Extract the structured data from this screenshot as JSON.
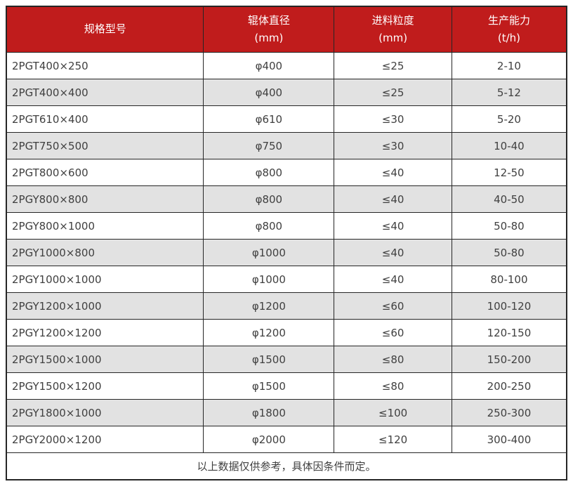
{
  "colors": {
    "header_bg": "#c01c1c",
    "header_text": "#ffffff",
    "row_alt_bg": "#e2e2e2",
    "row_bg": "#ffffff",
    "border": "#262626",
    "body_text": "#404040"
  },
  "table": {
    "header": {
      "model": "规格型号",
      "diameter_line1": "辊体直径",
      "diameter_line2": "(mm)",
      "feed_line1": "进料粒度",
      "feed_line2": "(mm)",
      "capacity_line1": "生产能力",
      "capacity_line2": "(t/h)"
    },
    "rows": [
      {
        "model": "2PGT400×250",
        "diameter": "φ400",
        "feed": "≤25",
        "capacity": "2-10"
      },
      {
        "model": "2PGT400×400",
        "diameter": "φ400",
        "feed": "≤25",
        "capacity": "5-12"
      },
      {
        "model": "2PGT610×400",
        "diameter": "φ610",
        "feed": "≤30",
        "capacity": "5-20"
      },
      {
        "model": "2PGT750×500",
        "diameter": "φ750",
        "feed": "≤30",
        "capacity": "10-40"
      },
      {
        "model": "2PGT800×600",
        "diameter": "φ800",
        "feed": "≤40",
        "capacity": "12-50"
      },
      {
        "model": "2PGY800×800",
        "diameter": "φ800",
        "feed": "≤40",
        "capacity": "40-50"
      },
      {
        "model": "2PGY800×1000",
        "diameter": "φ800",
        "feed": "≤40",
        "capacity": "50-80"
      },
      {
        "model": "2PGY1000×800",
        "diameter": "φ1000",
        "feed": "≤40",
        "capacity": "50-80"
      },
      {
        "model": "2PGY1000×1000",
        "diameter": "φ1000",
        "feed": "≤40",
        "capacity": "80-100"
      },
      {
        "model": "2PGY1200×1000",
        "diameter": "φ1200",
        "feed": "≤60",
        "capacity": "100-120"
      },
      {
        "model": "2PGY1200×1200",
        "diameter": "φ1200",
        "feed": "≤60",
        "capacity": "120-150"
      },
      {
        "model": "2PGY1500×1000",
        "diameter": "φ1500",
        "feed": "≤80",
        "capacity": "150-200"
      },
      {
        "model": "2PGY1500×1200",
        "diameter": "φ1500",
        "feed": "≤80",
        "capacity": "200-250"
      },
      {
        "model": "2PGY1800×1000",
        "diameter": "φ1800",
        "feed": "≤100",
        "capacity": "250-300"
      },
      {
        "model": "2PGY2000×1200",
        "diameter": "φ2000",
        "feed": "≤120",
        "capacity": "300-400"
      }
    ],
    "footer_note": "以上数据仅供参考，具体因条件而定。"
  }
}
